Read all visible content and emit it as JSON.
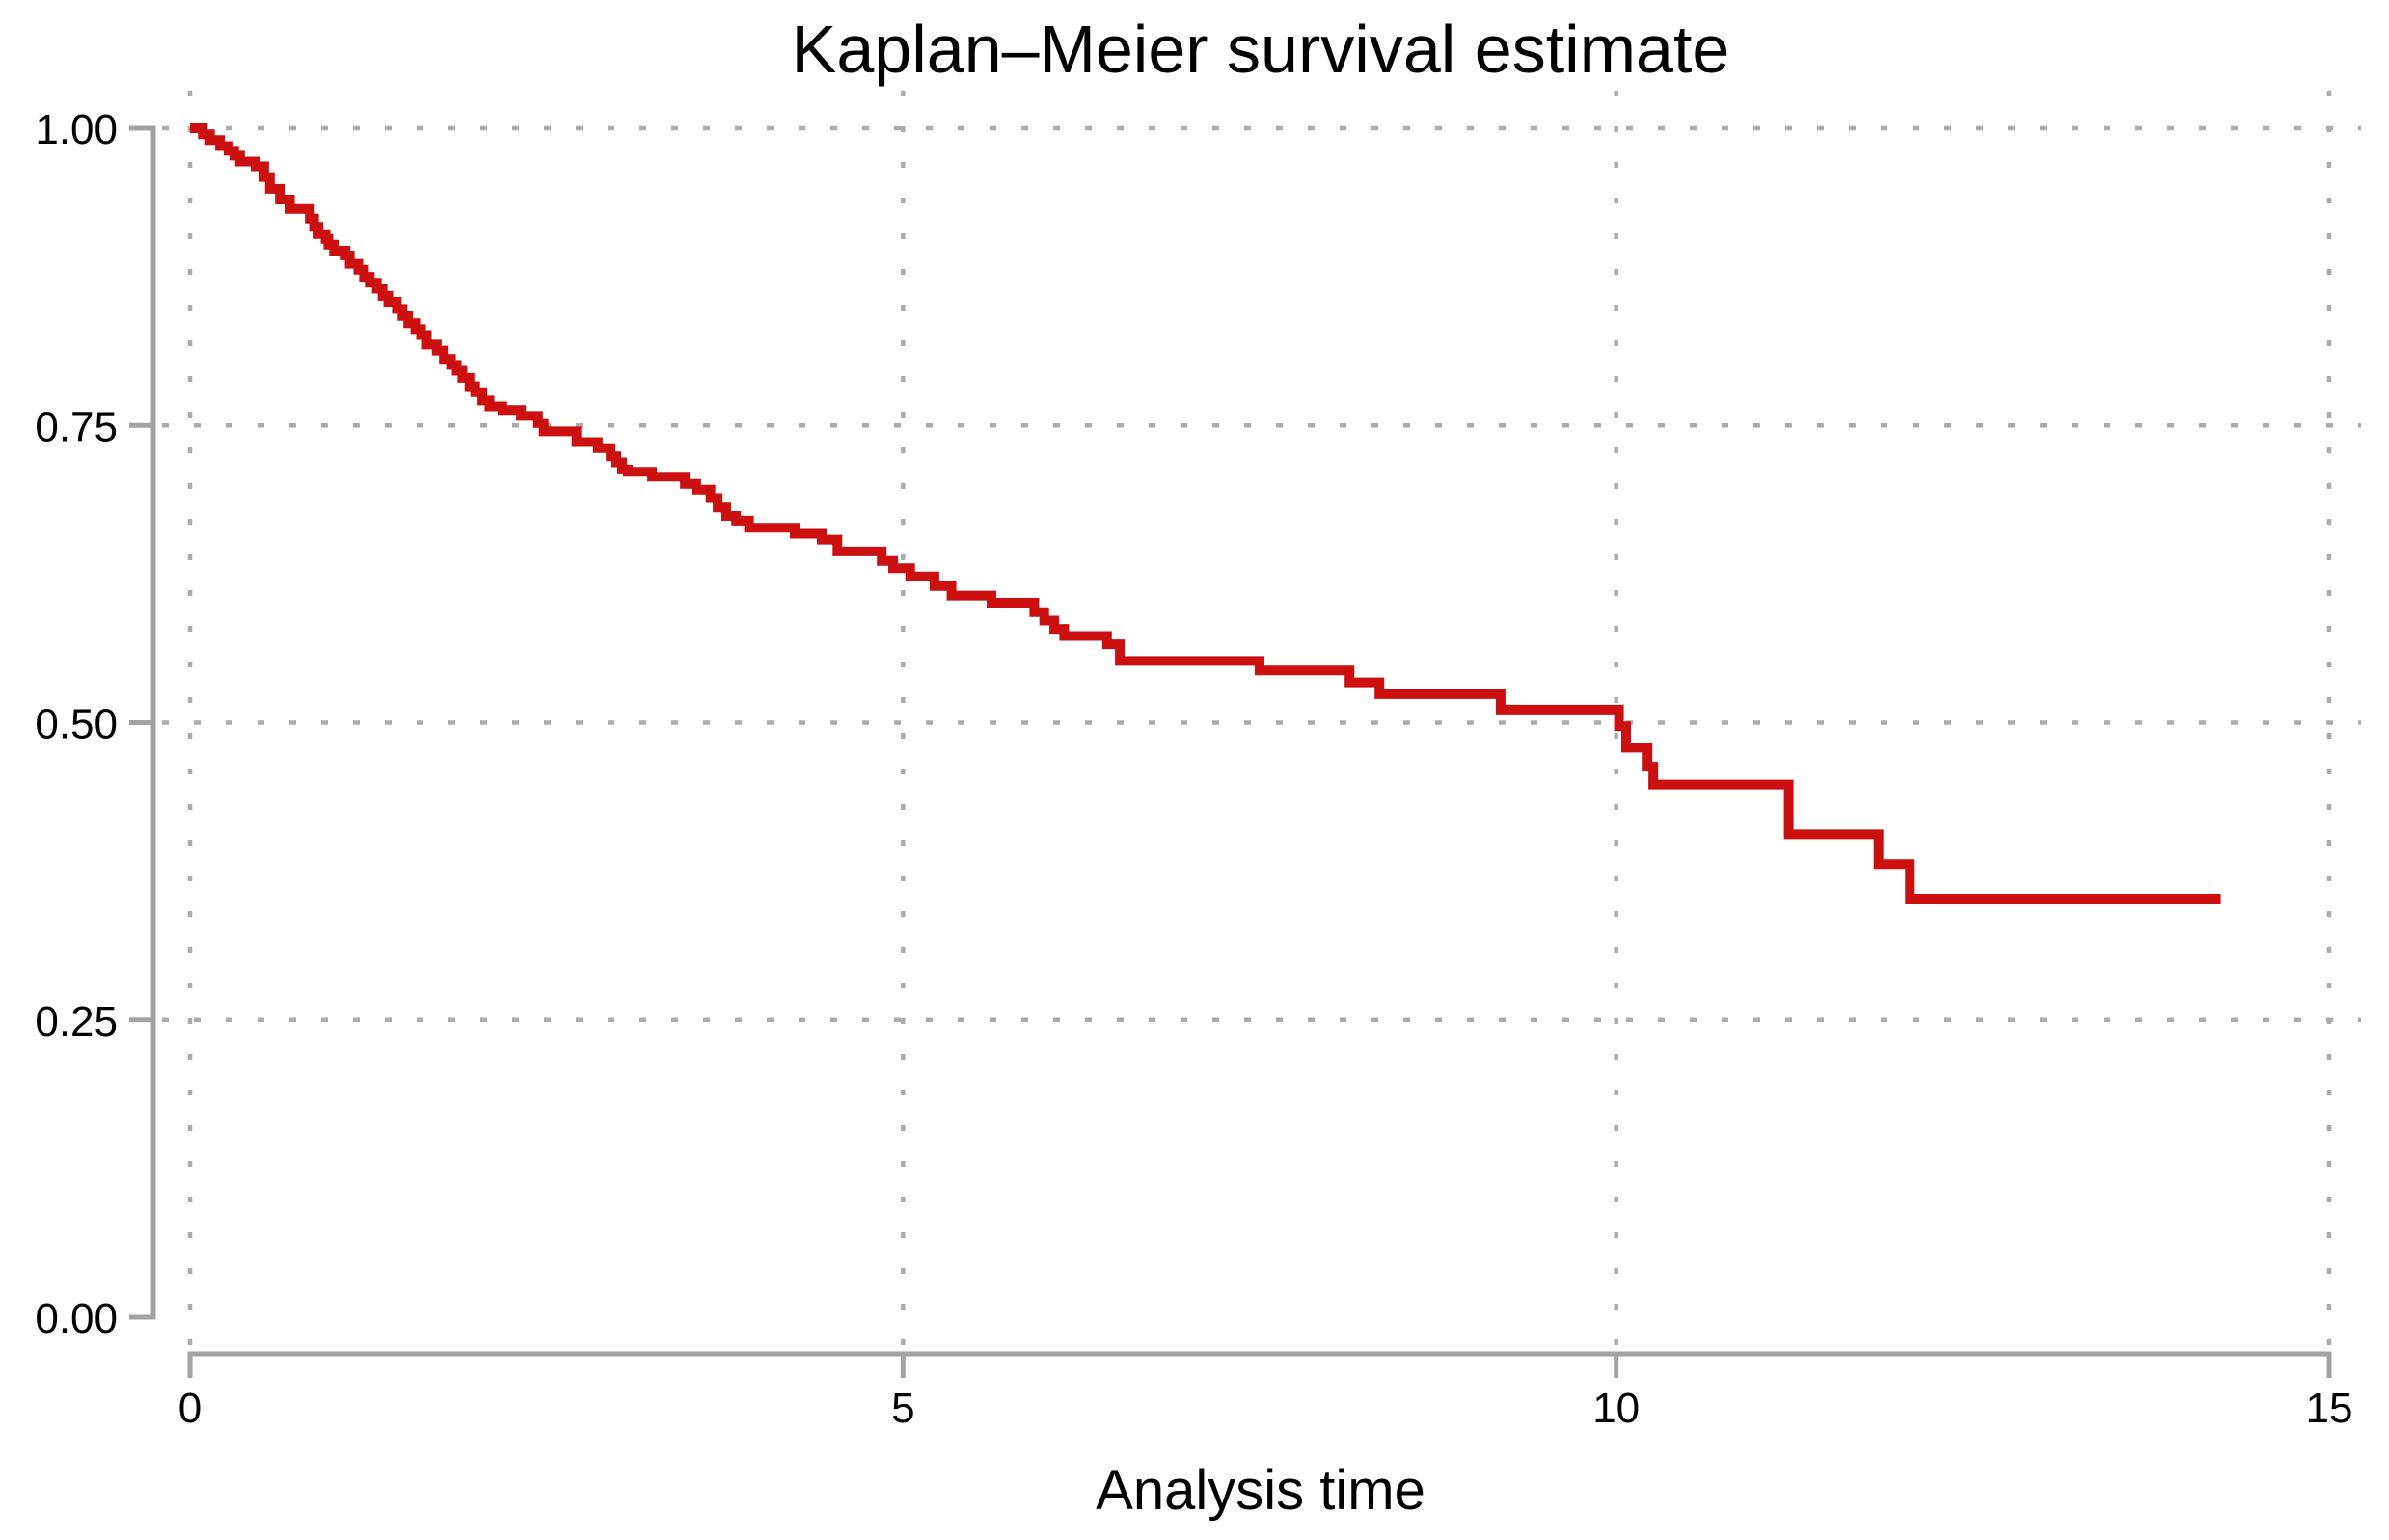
{
  "title": "Kaplan–Meier survival estimate",
  "x_axis": {
    "label": "Analysis time",
    "tick_labels": [
      "0",
      "5",
      "10",
      "15"
    ],
    "tick_values": [
      0,
      5,
      10,
      15
    ],
    "range": [
      0,
      15
    ]
  },
  "y_axis": {
    "label": "",
    "tick_labels": [
      "0.00",
      "0.25",
      "0.50",
      "0.75",
      "1.00"
    ],
    "tick_values": [
      0,
      0.25,
      0.5,
      0.75,
      1.0
    ],
    "range": [
      0,
      1
    ]
  },
  "colors": {
    "line": "#cc0f0f",
    "axis": "#a3a3a3",
    "grid": "#ababab",
    "text": "#000000",
    "background": "#ffffff"
  },
  "chart_data": {
    "type": "line",
    "subtype": "kaplan-meier-step",
    "title": "Kaplan–Meier survival estimate",
    "xlabel": "Analysis time",
    "ylabel": "",
    "xlim": [
      0,
      15
    ],
    "ylim": [
      0,
      1
    ],
    "x_ticks": [
      0,
      5,
      10,
      15
    ],
    "y_ticks": [
      0.0,
      0.25,
      0.5,
      0.75,
      1.0
    ],
    "grid_x": [
      0,
      5,
      10,
      15
    ],
    "grid_y": [
      0.25,
      0.5,
      0.75,
      1.0
    ],
    "grid_style": "dotted",
    "legend": "none",
    "series": [
      {
        "name": "Kaplan–Meier survival estimate",
        "color": "#cc0f0f",
        "end_time": 14.24,
        "steps": [
          [
            0.0,
            1.0
          ],
          [
            0.09,
            0.995
          ],
          [
            0.14,
            0.99
          ],
          [
            0.21,
            0.985
          ],
          [
            0.27,
            0.981
          ],
          [
            0.31,
            0.977
          ],
          [
            0.35,
            0.972
          ],
          [
            0.46,
            0.968
          ],
          [
            0.52,
            0.959
          ],
          [
            0.56,
            0.949
          ],
          [
            0.63,
            0.94
          ],
          [
            0.7,
            0.932
          ],
          [
            0.84,
            0.924
          ],
          [
            0.87,
            0.917
          ],
          [
            0.9,
            0.911
          ],
          [
            0.95,
            0.907
          ],
          [
            0.97,
            0.902
          ],
          [
            1.01,
            0.897
          ],
          [
            1.09,
            0.893
          ],
          [
            1.12,
            0.886
          ],
          [
            1.18,
            0.881
          ],
          [
            1.22,
            0.875
          ],
          [
            1.26,
            0.87
          ],
          [
            1.31,
            0.865
          ],
          [
            1.35,
            0.859
          ],
          [
            1.39,
            0.854
          ],
          [
            1.45,
            0.848
          ],
          [
            1.49,
            0.842
          ],
          [
            1.53,
            0.836
          ],
          [
            1.58,
            0.831
          ],
          [
            1.62,
            0.826
          ],
          [
            1.66,
            0.818
          ],
          [
            1.73,
            0.813
          ],
          [
            1.78,
            0.806
          ],
          [
            1.83,
            0.801
          ],
          [
            1.87,
            0.796
          ],
          [
            1.91,
            0.79
          ],
          [
            1.96,
            0.783
          ],
          [
            2.0,
            0.778
          ],
          [
            2.05,
            0.771
          ],
          [
            2.1,
            0.766
          ],
          [
            2.19,
            0.763
          ],
          [
            2.32,
            0.758
          ],
          [
            2.44,
            0.752
          ],
          [
            2.48,
            0.745
          ],
          [
            2.71,
            0.736
          ],
          [
            2.86,
            0.731
          ],
          [
            2.95,
            0.724
          ],
          [
            2.99,
            0.719
          ],
          [
            3.03,
            0.713
          ],
          [
            3.07,
            0.711
          ],
          [
            3.24,
            0.707
          ],
          [
            3.47,
            0.701
          ],
          [
            3.55,
            0.696
          ],
          [
            3.65,
            0.689
          ],
          [
            3.7,
            0.681
          ],
          [
            3.76,
            0.674
          ],
          [
            3.83,
            0.67
          ],
          [
            3.92,
            0.664
          ],
          [
            4.24,
            0.659
          ],
          [
            4.43,
            0.654
          ],
          [
            4.54,
            0.644
          ],
          [
            4.85,
            0.636
          ],
          [
            4.93,
            0.63
          ],
          [
            5.05,
            0.623
          ],
          [
            5.22,
            0.615
          ],
          [
            5.34,
            0.607
          ],
          [
            5.62,
            0.601
          ],
          [
            5.92,
            0.593
          ],
          [
            5.99,
            0.586
          ],
          [
            6.06,
            0.579
          ],
          [
            6.13,
            0.573
          ],
          [
            6.43,
            0.566
          ],
          [
            6.52,
            0.552
          ],
          [
            7.5,
            0.544
          ],
          [
            8.13,
            0.534
          ],
          [
            8.34,
            0.524
          ],
          [
            9.19,
            0.511
          ],
          [
            10.02,
            0.497
          ],
          [
            10.07,
            0.479
          ],
          [
            10.22,
            0.463
          ],
          [
            10.26,
            0.448
          ],
          [
            11.21,
            0.406
          ],
          [
            11.84,
            0.381
          ],
          [
            12.06,
            0.352
          ]
        ]
      }
    ]
  }
}
